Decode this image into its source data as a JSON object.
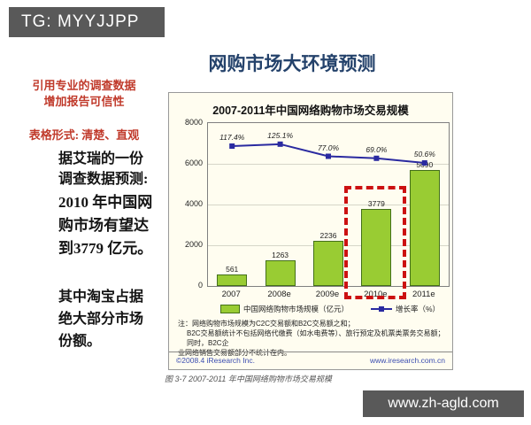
{
  "badge": {
    "text": "TG: MYYJJPP"
  },
  "slide_title": "网购市场大环境预测",
  "left_notes": {
    "red1_line1": "引用专业的调查数据",
    "red1_line2": "增加报告可信性",
    "red2": "表格形式: 清楚、直观",
    "black1_line1": "据艾瑞的一份",
    "black1_line2": "调查数据预测:",
    "black2_line1": "2010 年中国网",
    "black2_line2": "购市场有望达",
    "black2_line3": "到3779 亿元。",
    "black3_line1": "其中淘宝占据",
    "black3_line2": "绝大部分市场",
    "black3_line3": "份额。"
  },
  "chart_data": {
    "type": "bar",
    "title": "2007-2011年中国网络购物市场交易规模",
    "categories": [
      "2007",
      "2008e",
      "2009e",
      "2010e",
      "2011e"
    ],
    "series": [
      {
        "name": "中国网络购物市场规模（亿元）",
        "type": "bar",
        "values": [
          561,
          1263,
          2236,
          3779,
          5690
        ],
        "color": "#99cc33"
      },
      {
        "name": "增长率（%）",
        "type": "line",
        "values": [
          117.4,
          125.1,
          77.0,
          69.0,
          50.6
        ],
        "color": "#2a2aa0"
      }
    ],
    "ylim": [
      0,
      8000
    ],
    "yticks": [
      0,
      2000,
      4000,
      6000,
      8000
    ],
    "grid": "horizontal",
    "legend_position": "bottom",
    "highlight_index": 3,
    "note_lines": [
      "注：网络购物市场规模为C2C交易额和B2C交易额之和；",
      "B2C交易额统计不包括网络代缴费（如水电费等）、旅行预定及机票类票务交易额；同时，B2C企",
      "业网络销售交易额部分不统计在内。"
    ],
    "footer_left": "©2008.4 iResearch Inc.",
    "footer_right": "www.iresearch.com.cn",
    "caption": "图 3-7 2007-2011 年中国网络购物市场交易规模"
  },
  "site_bar": {
    "text": "www.zh-agld.com"
  },
  "colors": {
    "bar_fill": "#99cc33",
    "bar_border": "#44701a",
    "growth_line": "#2a2aa0",
    "highlight_box": "#cc1111",
    "badge_bg": "#595959",
    "title_text": "#24426b",
    "red_text": "#c03a2b"
  }
}
